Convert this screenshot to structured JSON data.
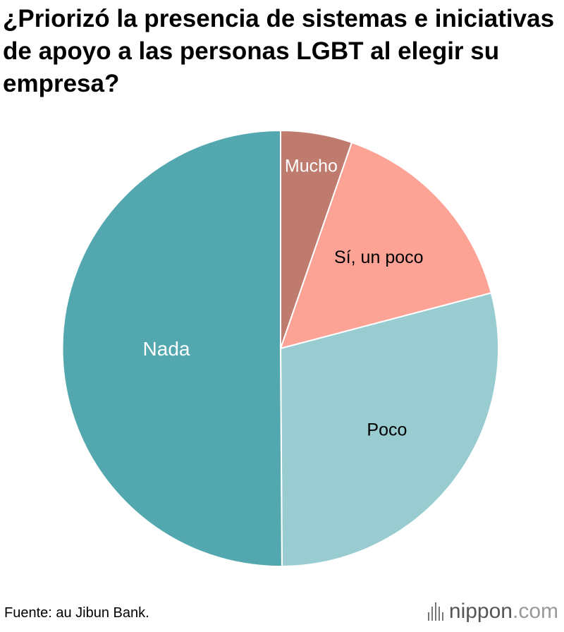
{
  "title": "¿Priorizó la presencia de sistemas e iniciativas de apoyo a las personas LGBT al elegir su empresa?",
  "chart_data": {
    "type": "pie",
    "title": "¿Priorizó la presencia de sistemas e iniciativas de apoyo a las personas LGBT al elegir su empresa?",
    "start_angle_deg": 0,
    "direction": "clockwise",
    "slices": [
      {
        "label": "Mucho",
        "value": 5.3,
        "color": "#be7b6e",
        "label_color": "#ffffff"
      },
      {
        "label": "Sí, un poco",
        "value": 15.6,
        "color": "#fca396",
        "label_color": "#000000"
      },
      {
        "label": "Poco",
        "value": 29.0,
        "color": "#98ccd0",
        "label_color": "#000000"
      },
      {
        "label": "Nada",
        "value": 50.1,
        "color": "#52a8ae",
        "label_color": "#ffffff"
      }
    ]
  },
  "footer": {
    "source": "Fuente: au Jibun Bank.",
    "brand_name": "nippon",
    "brand_suffix": ".com"
  }
}
